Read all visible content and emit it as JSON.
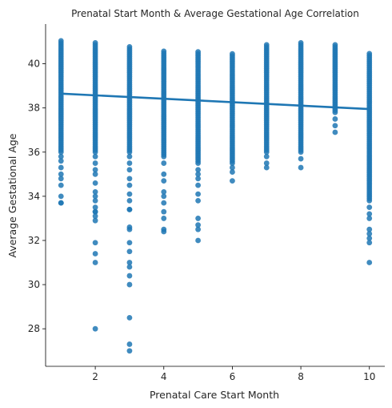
{
  "chart_data": {
    "type": "scatter",
    "title": "Prenatal Start Month & Average Gestational Age Correlation",
    "xlabel": "Prenatal Care Start Month",
    "ylabel": "Average Gestational Age",
    "xlim": [
      0.55,
      10.45
    ],
    "ylim": [
      26.3,
      41.8
    ],
    "x_ticks": [
      2,
      4,
      6,
      8,
      10
    ],
    "y_ticks": [
      28,
      30,
      32,
      34,
      36,
      38,
      40
    ],
    "grid": false,
    "colors": {
      "points": "#1f77b4",
      "regression": "#1f77b4"
    },
    "series": [
      {
        "type": "scatter",
        "strips": [
          {
            "x": 1,
            "dense_range": [
              36.0,
              41.1
            ],
            "outliers": [
              35.8,
              35.6,
              35.3,
              35.0,
              34.8,
              34.5,
              34.0,
              33.7,
              33.7
            ]
          },
          {
            "x": 2,
            "dense_range": [
              36.0,
              41.0
            ],
            "outliers": [
              35.8,
              35.5,
              35.2,
              35.0,
              34.6,
              34.2,
              34.0,
              33.8,
              33.5,
              33.3,
              33.3,
              33.1,
              32.9,
              31.9,
              31.4,
              31.0,
              28.0
            ]
          },
          {
            "x": 3,
            "dense_range": [
              36.0,
              40.8
            ],
            "outliers": [
              35.8,
              35.5,
              35.2,
              34.8,
              34.5,
              34.1,
              33.8,
              33.4,
              33.4,
              32.6,
              32.5,
              31.9,
              31.5,
              31.0,
              30.8,
              30.4,
              30.0,
              28.5,
              27.3,
              27.0
            ]
          },
          {
            "x": 4,
            "dense_range": [
              35.8,
              40.6
            ],
            "outliers": [
              35.5,
              35.0,
              34.7,
              34.2,
              34.0,
              33.7,
              33.3,
              33.0,
              32.5,
              32.4
            ]
          },
          {
            "x": 5,
            "dense_range": [
              35.5,
              40.6
            ],
            "outliers": [
              35.2,
              35.0,
              34.8,
              34.5,
              34.1,
              33.8,
              33.0,
              32.7,
              32.5,
              32.0
            ]
          },
          {
            "x": 6,
            "dense_range": [
              35.5,
              40.5
            ],
            "outliers": [
              35.3,
              35.1,
              34.7
            ]
          },
          {
            "x": 7,
            "dense_range": [
              36.0,
              40.9
            ],
            "outliers": [
              35.8,
              35.5,
              35.3
            ]
          },
          {
            "x": 8,
            "dense_range": [
              36.0,
              41.0
            ],
            "outliers": [
              35.7,
              35.3
            ]
          },
          {
            "x": 9,
            "dense_range": [
              37.8,
              40.9
            ],
            "outliers": [
              37.5,
              37.2,
              36.9
            ]
          },
          {
            "x": 10,
            "dense_range": [
              33.8,
              40.5
            ],
            "outliers": [
              33.5,
              33.2,
              33.0,
              32.5,
              32.3,
              32.1,
              31.9,
              31.0
            ]
          }
        ]
      },
      {
        "type": "regression_line",
        "x": [
          1,
          10
        ],
        "y": [
          38.65,
          37.95
        ]
      }
    ]
  }
}
